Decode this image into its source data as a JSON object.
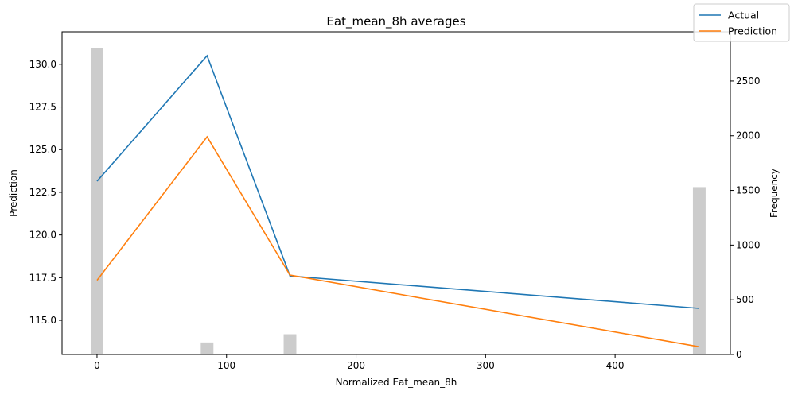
{
  "chart_data": {
    "type": "line",
    "title": "Eat_mean_8h averages",
    "xlabel": "Normalized Eat_mean_8h",
    "ylabel": "Prediction",
    "y2label": "Frequency",
    "xlim": [
      -27,
      489
    ],
    "ylim": [
      113.0,
      131.9
    ],
    "y2lim": [
      0,
      2950
    ],
    "x_ticks": [
      0,
      100,
      200,
      300,
      400
    ],
    "y_ticks": [
      115.0,
      117.5,
      120.0,
      122.5,
      125.0,
      127.5,
      130.0
    ],
    "y_tick_labels": [
      "115.0",
      "117.5",
      "120.0",
      "122.5",
      "125.0",
      "127.5",
      "130.0"
    ],
    "y2_ticks": [
      0,
      500,
      1000,
      1500,
      2000,
      2500
    ],
    "y2_tick_labels": [
      "0",
      "500",
      "1000",
      "1500",
      "2000",
      "2500"
    ],
    "x": [
      0,
      85,
      149,
      465
    ],
    "series": [
      {
        "name": "Actual",
        "color": "#1f77b4",
        "values": [
          123.15,
          130.5,
          117.6,
          115.7
        ]
      },
      {
        "name": "Prediction",
        "color": "#ff7f0e",
        "values": [
          117.35,
          125.75,
          117.65,
          113.45
        ]
      }
    ],
    "histogram": {
      "color": "#cccccc",
      "bar_width": 7,
      "x": [
        0,
        85,
        149,
        465
      ],
      "values": [
        2800,
        110,
        185,
        1530
      ]
    },
    "legend_position": "top-right",
    "grid": false
  }
}
